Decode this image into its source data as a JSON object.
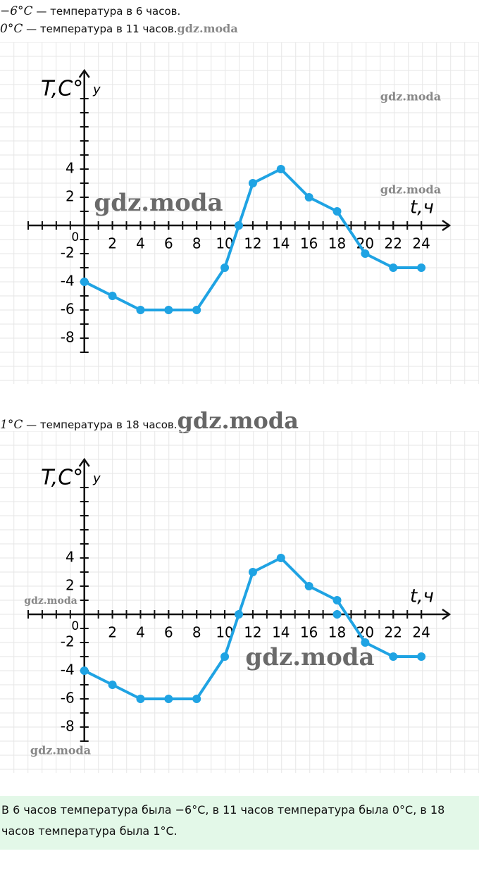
{
  "lines": [
    {
      "math": "−6°C",
      "text": " — температура в 6 часов."
    },
    {
      "math": "0°C",
      "text": " — температура в 11 часов."
    },
    {
      "math": "1°C",
      "text": " — температура в 18 часов."
    }
  ],
  "watermark": "gdz.moda",
  "chart_data": [
    {
      "type": "line",
      "y_label": "T,C°",
      "y_axis_name": "y",
      "x_label": "t,ч",
      "x": [
        0,
        2,
        4,
        6,
        8,
        10,
        11,
        12,
        14,
        16,
        18,
        20,
        22,
        24
      ],
      "series": [
        {
          "color": "#1fa3e3",
          "values": [
            -4,
            -5,
            -6,
            -6,
            -6,
            -3,
            0,
            3,
            4,
            2,
            1,
            -2,
            -3,
            -3
          ]
        }
      ],
      "xlim": [
        -4,
        26
      ],
      "ylim": [
        -9,
        11
      ],
      "xticks": [
        0,
        2,
        4,
        6,
        8,
        10,
        12,
        14,
        16,
        18,
        20,
        22,
        24
      ],
      "yticks": [
        -8,
        -6,
        -4,
        -2,
        2,
        4
      ],
      "minor_ticks": true,
      "grid": true
    },
    {
      "type": "line",
      "y_label": "T,C°",
      "y_axis_name": "y",
      "x_label": "t,ч",
      "x": [
        0,
        2,
        4,
        6,
        8,
        10,
        11,
        12,
        14,
        16,
        18,
        20,
        22,
        24
      ],
      "series": [
        {
          "color": "#1fa3e3",
          "values": [
            -4,
            -5,
            -6,
            -6,
            -6,
            -3,
            0,
            3,
            4,
            2,
            1,
            -2,
            -3,
            -3
          ]
        }
      ],
      "highlight": {
        "x": [
          18
        ],
        "values": [
          0
        ]
      },
      "xlim": [
        -4,
        26
      ],
      "ylim": [
        -9,
        11
      ],
      "xticks": [
        0,
        2,
        4,
        6,
        8,
        10,
        12,
        14,
        16,
        18,
        20,
        22,
        24
      ],
      "yticks": [
        -8,
        -6,
        -4,
        -2,
        2,
        4
      ],
      "minor_ticks": true,
      "grid": true
    }
  ],
  "answer": "В 6 часов температура была −6°C, в 11 часов температура была 0°C, в 18 часов температура была 1°C."
}
